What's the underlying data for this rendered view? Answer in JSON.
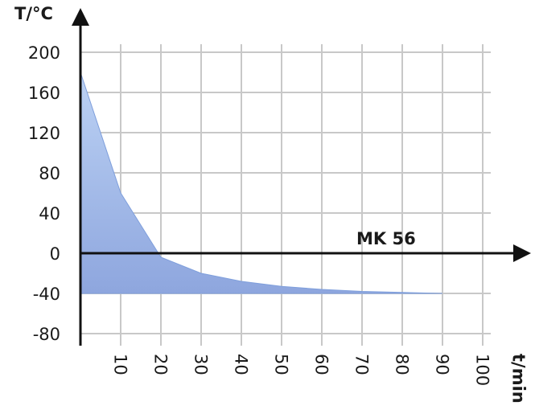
{
  "chart_data": {
    "type": "area",
    "y_label": "T/°C",
    "x_label": "t/min",
    "x": [
      0,
      10,
      20,
      30,
      40,
      50,
      60,
      70,
      80,
      90
    ],
    "series": [
      {
        "name": "MK 56",
        "color": "#7f9fdc",
        "values": [
          180,
          60,
          -4,
          -20,
          -28,
          -33,
          -36,
          -38,
          -39,
          -40
        ]
      }
    ],
    "xlim": [
      0,
      112
    ],
    "ylim": [
      -92,
      244
    ],
    "xticks": [
      10,
      20,
      30,
      40,
      50,
      60,
      70,
      80,
      90,
      100
    ],
    "yticks": [
      -80,
      -40,
      0,
      40,
      80,
      120,
      160,
      200
    ],
    "grid": true
  }
}
